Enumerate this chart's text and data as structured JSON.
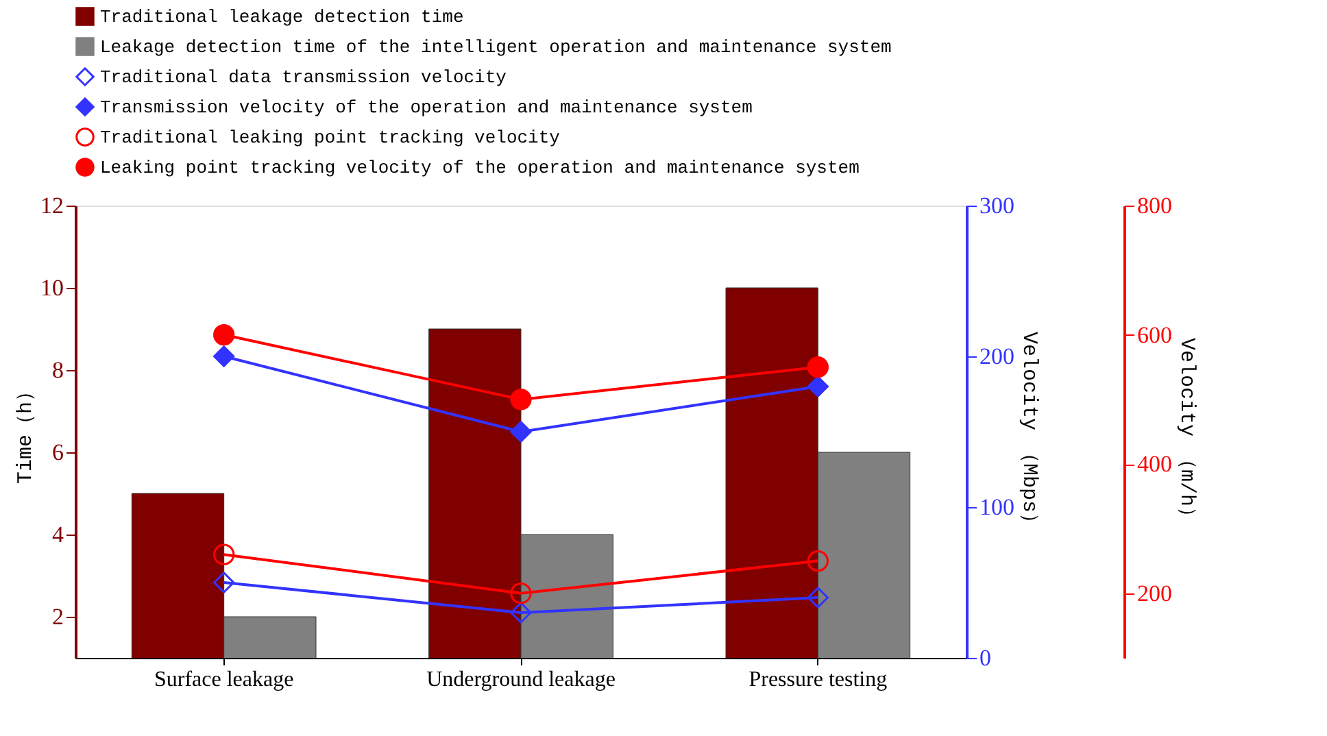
{
  "chart_data": {
    "type": "bar",
    "categories": [
      "Surface leakage",
      "Underground leakage",
      "Pressure testing"
    ],
    "ylabel": "Time（h）",
    "y2label": "Velocity （Mbps）",
    "y3label": "Velocity （m/h）",
    "ylim": [
      1,
      12
    ],
    "yticks": [
      2,
      4,
      6,
      8,
      10,
      12
    ],
    "y2lim": [
      0,
      300
    ],
    "y2ticks": [
      0,
      100,
      200,
      300
    ],
    "y3lim": [
      100,
      800
    ],
    "y3ticks": [
      200,
      400,
      600,
      800
    ],
    "legend": "top",
    "grid": false,
    "series": [
      {
        "name": "Traditional leakage detection time",
        "color": "#800000",
        "values": [
          5,
          9,
          10
        ]
      },
      {
        "name": "Leakage detection time of the intelligent operation and maintenance system",
        "color": "#808080",
        "values": [
          2,
          4,
          6
        ]
      },
      {
        "name": "Traditional data transmission velocity",
        "type": "line",
        "axis": "y2",
        "marker": "diamond-open",
        "color": "#3333ff",
        "values": [
          50,
          30,
          40
        ]
      },
      {
        "name": "Transmission velocity of the operation and maintenance system",
        "type": "line",
        "axis": "y2",
        "marker": "diamond",
        "color": "#3333ff",
        "values": [
          200,
          150,
          180
        ]
      },
      {
        "name": "Traditional leaking point tracking velocity",
        "type": "line",
        "axis": "y3",
        "marker": "circle-open",
        "color": "#ff0000",
        "values": [
          260,
          200,
          250
        ]
      },
      {
        "name": "Leaking point tracking velocity of the operation and maintenance system",
        "type": "line",
        "axis": "y3",
        "marker": "circle",
        "color": "#ff0000",
        "values": [
          600,
          500,
          550
        ]
      }
    ]
  }
}
